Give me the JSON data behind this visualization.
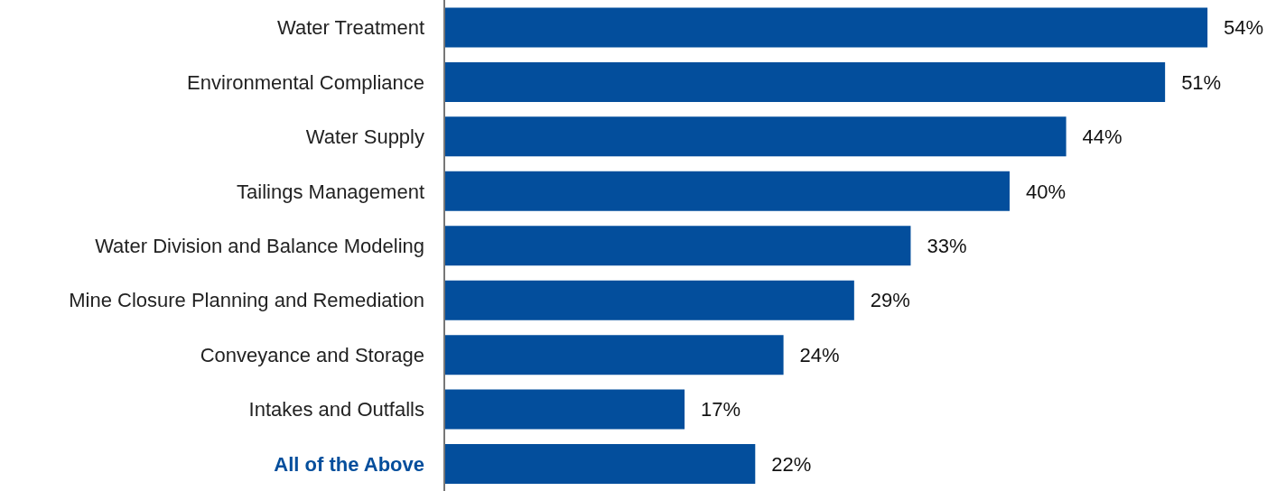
{
  "chart_data": {
    "type": "bar",
    "orientation": "horizontal",
    "categories": [
      "Water Treatment",
      "Environmental Compliance",
      "Water Supply",
      "Tailings Management",
      "Water Division and Balance Modeling",
      "Mine Closure Planning and Remediation",
      "Conveyance and Storage",
      "Intakes and Outfalls",
      "All of the Above"
    ],
    "values": [
      54,
      51,
      44,
      40,
      33,
      29,
      24,
      17,
      22
    ],
    "value_labels": [
      "54%",
      "51%",
      "44%",
      "40%",
      "33%",
      "29%",
      "24%",
      "17%",
      "22%"
    ],
    "color": "#034e9c"
  }
}
